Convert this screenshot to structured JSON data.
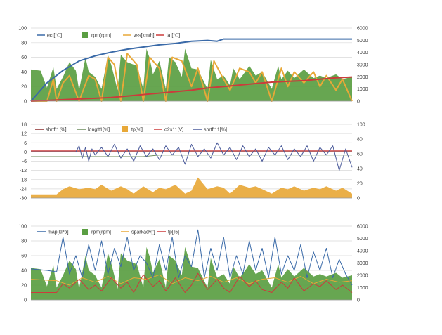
{
  "chart_data": [
    {
      "type": "line",
      "left_axis": {
        "ticks": [
          0,
          20,
          40,
          60,
          80,
          100
        ],
        "ylim": [
          0,
          100
        ]
      },
      "right_axis": {
        "ticks": [
          0,
          1000,
          2000,
          3000,
          4000,
          5000,
          6000
        ],
        "ylim": [
          0,
          6000
        ]
      },
      "grid": true,
      "legend_position": "top",
      "legend": [
        {
          "label": "ect[°C]",
          "color": "#3a6aa8",
          "marker": "line"
        },
        {
          "label": "rpm[rpm]",
          "color": "#5a9e42",
          "marker": "area"
        },
        {
          "label": "vss[km/h]",
          "color": "#e8a838",
          "marker": "line"
        },
        {
          "label": "iat[°C]",
          "color": "#cc3b3b",
          "marker": "line"
        }
      ],
      "series": [
        {
          "name": "rpm[rpm]",
          "kind": "area",
          "axis": "right",
          "color": "#5a9e42",
          "x": [
            0,
            3,
            5,
            7,
            8,
            10,
            12,
            14,
            15,
            17,
            18,
            20,
            22,
            24,
            25,
            27,
            28,
            30,
            33,
            35,
            36,
            37,
            38,
            40,
            42,
            43,
            45,
            47,
            48,
            50,
            52,
            55,
            56,
            58,
            60,
            62,
            63,
            65,
            67,
            68,
            70,
            72,
            75,
            77,
            78,
            80,
            82,
            85,
            88,
            90,
            92,
            95,
            97,
            100
          ],
          "values": [
            2600,
            2500,
            1100,
            2800,
            1000,
            2000,
            3200,
            2500,
            900,
            3600,
            2400,
            2000,
            1000,
            3800,
            3000,
            900,
            3800,
            3200,
            2900,
            1000,
            4300,
            3500,
            2200,
            3300,
            1000,
            3600,
            3200,
            2000,
            4300,
            2700,
            2600,
            1000,
            3400,
            1800,
            2100,
            1300,
            2700,
            1800,
            2500,
            2900,
            2100,
            2400,
            1000,
            2900,
            1800,
            2500,
            1900,
            2600,
            1900,
            2100,
            1900,
            2200,
            1800,
            2000
          ]
        },
        {
          "name": "ect[°C]",
          "kind": "line",
          "axis": "left",
          "color": "#3a6aa8",
          "x": [
            0,
            5,
            10,
            15,
            20,
            25,
            30,
            35,
            40,
            45,
            50,
            55,
            58,
            60,
            65,
            70,
            75,
            80,
            85,
            90,
            95,
            100
          ],
          "values": [
            0,
            25,
            42,
            55,
            62,
            67,
            71,
            74,
            77,
            79,
            82,
            83,
            82,
            85,
            85,
            85,
            85,
            85,
            85,
            85,
            85,
            85
          ]
        },
        {
          "name": "vss[km/h]",
          "kind": "line",
          "axis": "left",
          "color": "#e8a838",
          "x": [
            0,
            3,
            5,
            7,
            8,
            10,
            12,
            15,
            18,
            20,
            22,
            24,
            26,
            28,
            30,
            33,
            35,
            37,
            40,
            42,
            44,
            47,
            50,
            52,
            55,
            57,
            60,
            62,
            65,
            68,
            70,
            72,
            75,
            78,
            80,
            82,
            85,
            88,
            90,
            92,
            95,
            97,
            100
          ],
          "values": [
            0,
            0,
            0,
            30,
            0,
            25,
            35,
            0,
            35,
            30,
            0,
            60,
            50,
            0,
            65,
            50,
            0,
            60,
            45,
            0,
            60,
            55,
            20,
            45,
            0,
            55,
            30,
            15,
            45,
            40,
            25,
            40,
            0,
            45,
            20,
            40,
            25,
            40,
            20,
            35,
            15,
            30,
            0
          ]
        },
        {
          "name": "iat[°C]",
          "kind": "line",
          "axis": "left",
          "color": "#cc3b3b",
          "x": [
            0,
            10,
            20,
            25,
            30,
            35,
            40,
            45,
            50,
            55,
            60,
            65,
            70,
            75,
            80,
            85,
            90,
            95,
            100
          ],
          "values": [
            0,
            2,
            4,
            5,
            7,
            9,
            11,
            13,
            15,
            18,
            20,
            22,
            24,
            26,
            27,
            28,
            30,
            32,
            33
          ]
        }
      ]
    },
    {
      "type": "line",
      "left_axis": {
        "ticks": [
          18,
          12,
          6,
          0,
          -6,
          -12,
          -18,
          -24,
          -30
        ],
        "ylim": [
          -30,
          18
        ]
      },
      "right_axis": {
        "ticks": [
          0,
          20,
          40,
          60,
          80,
          100
        ],
        "ylim": [
          0,
          100
        ]
      },
      "grid": true,
      "legend_position": "top",
      "legend": [
        {
          "label": "shrtft1[%]",
          "color": "#8a2a2a",
          "marker": "line"
        },
        {
          "label": "longft1[%]",
          "color": "#6a8a5a",
          "marker": "line"
        },
        {
          "label": "tp[%]",
          "color": "#e8a838",
          "marker": "area"
        },
        {
          "label": "o2s11[V]",
          "color": "#cc3b3b",
          "marker": "line"
        },
        {
          "label": "shrtft11[%]",
          "color": "#4a5a9a",
          "marker": "line"
        }
      ],
      "series": [
        {
          "name": "tp[%]",
          "kind": "area",
          "axis": "right",
          "color": "#e8a838",
          "x": [
            0,
            8,
            10,
            12,
            15,
            18,
            20,
            22,
            25,
            28,
            30,
            32,
            35,
            38,
            40,
            42,
            45,
            48,
            50,
            52,
            55,
            58,
            60,
            62,
            65,
            68,
            70,
            72,
            75,
            78,
            80,
            82,
            85,
            88,
            90,
            92,
            95,
            97,
            100
          ],
          "values": [
            5,
            5,
            12,
            16,
            12,
            14,
            12,
            18,
            10,
            16,
            12,
            6,
            16,
            8,
            14,
            12,
            18,
            6,
            10,
            28,
            12,
            16,
            14,
            6,
            18,
            14,
            16,
            12,
            6,
            14,
            12,
            16,
            10,
            14,
            12,
            16,
            10,
            14,
            6
          ]
        },
        {
          "name": "longft1[%]",
          "kind": "line",
          "axis": "left",
          "color": "#6a8a5a",
          "x": [
            0,
            35,
            40,
            100
          ],
          "values": [
            -3,
            -3,
            -2,
            -2
          ]
        },
        {
          "name": "shrtft1[%]",
          "kind": "line",
          "axis": "left",
          "color": "#8a2a2a",
          "x": [
            0,
            20,
            100
          ],
          "values": [
            0.5,
            0.5,
            0.5
          ]
        },
        {
          "name": "o2s11[V]",
          "kind": "line",
          "axis": "right",
          "color": "#cc3b3b",
          "x": [
            0,
            100
          ],
          "values": [
            64,
            64
          ]
        },
        {
          "name": "shrtft11[%]",
          "kind": "line",
          "axis": "left",
          "color": "#4a5a9a",
          "x": [
            0,
            14,
            15,
            16,
            17,
            18,
            19,
            20,
            22,
            24,
            26,
            28,
            30,
            32,
            34,
            36,
            38,
            40,
            42,
            44,
            46,
            48,
            50,
            52,
            54,
            56,
            58,
            60,
            62,
            64,
            66,
            68,
            70,
            72,
            74,
            76,
            78,
            80,
            82,
            84,
            86,
            88,
            90,
            92,
            94,
            96,
            98,
            100
          ],
          "values": [
            0,
            0,
            4,
            -4,
            3,
            -6,
            2,
            -2,
            3,
            -3,
            5,
            -4,
            2,
            -6,
            4,
            -3,
            2,
            -5,
            4,
            -2,
            3,
            -8,
            5,
            -3,
            2,
            -4,
            6,
            -2,
            3,
            -5,
            4,
            -3,
            2,
            -6,
            3,
            -2,
            4,
            -5,
            2,
            -3,
            4,
            -6,
            3,
            -2,
            4,
            -12,
            2,
            -10
          ]
        }
      ]
    },
    {
      "type": "line",
      "left_axis": {
        "ticks": [
          0,
          20,
          40,
          60,
          80,
          100
        ],
        "ylim": [
          0,
          100
        ]
      },
      "right_axis": {
        "ticks": [
          0,
          1000,
          2000,
          3000,
          4000,
          5000,
          6000
        ],
        "ylim": [
          0,
          6000
        ]
      },
      "grid": true,
      "legend_position": "top",
      "legend": [
        {
          "label": "map[kPa]",
          "color": "#3a6aa8",
          "marker": "line"
        },
        {
          "label": "rpm[rpm]",
          "color": "#5a9e42",
          "marker": "area"
        },
        {
          "label": "sparkadv[']",
          "color": "#e8a838",
          "marker": "line"
        },
        {
          "label": "tp[%]",
          "color": "#cc3b3b",
          "marker": "line"
        }
      ],
      "series": [
        {
          "name": "rpm[rpm]",
          "kind": "area",
          "axis": "right",
          "color": "#5a9e42",
          "x": [
            0,
            3,
            5,
            7,
            8,
            10,
            12,
            14,
            15,
            17,
            18,
            20,
            22,
            24,
            25,
            27,
            28,
            30,
            33,
            35,
            36,
            37,
            38,
            40,
            42,
            43,
            45,
            47,
            48,
            50,
            52,
            55,
            56,
            58,
            60,
            62,
            63,
            65,
            67,
            68,
            70,
            72,
            75,
            77,
            78,
            80,
            82,
            85,
            88,
            90,
            92,
            95,
            97,
            100
          ],
          "values": [
            2600,
            2500,
            1100,
            2800,
            1000,
            2000,
            3200,
            2500,
            900,
            3600,
            2400,
            2000,
            1000,
            3800,
            3000,
            900,
            3800,
            3200,
            2900,
            1000,
            4300,
            3500,
            2200,
            3300,
            1000,
            3600,
            3200,
            2000,
            4300,
            2700,
            2600,
            1000,
            3400,
            1800,
            2100,
            1300,
            2700,
            1800,
            2500,
            2900,
            2100,
            2400,
            1000,
            2900,
            1800,
            2500,
            1900,
            2600,
            1900,
            2100,
            1900,
            2200,
            1800,
            2000
          ]
        },
        {
          "name": "map[kPa]",
          "kind": "line",
          "axis": "left",
          "color": "#3a6aa8",
          "x": [
            0,
            5,
            8,
            10,
            12,
            14,
            16,
            18,
            20,
            22,
            24,
            26,
            28,
            30,
            32,
            34,
            36,
            38,
            40,
            42,
            44,
            46,
            48,
            50,
            52,
            54,
            56,
            58,
            60,
            62,
            64,
            66,
            68,
            70,
            72,
            74,
            76,
            78,
            80,
            82,
            84,
            86,
            88,
            90,
            92,
            94,
            96,
            98,
            100
          ],
          "values": [
            42,
            40,
            38,
            85,
            35,
            60,
            30,
            75,
            40,
            80,
            35,
            70,
            45,
            85,
            40,
            60,
            50,
            30,
            75,
            40,
            85,
            30,
            60,
            45,
            95,
            30,
            70,
            40,
            85,
            30,
            60,
            35,
            80,
            40,
            70,
            30,
            85,
            35,
            60,
            40,
            75,
            30,
            65,
            40,
            70,
            30,
            55,
            35,
            20
          ]
        },
        {
          "name": "sparkadv[']",
          "kind": "line",
          "axis": "left",
          "color": "#e8a838",
          "x": [
            0,
            8,
            12,
            16,
            20,
            24,
            28,
            32,
            36,
            40,
            44,
            48,
            52,
            56,
            60,
            64,
            68,
            72,
            76,
            80,
            84,
            88,
            92,
            96,
            100
          ],
          "values": [
            28,
            26,
            20,
            30,
            24,
            32,
            22,
            30,
            28,
            34,
            22,
            30,
            26,
            32,
            24,
            30,
            22,
            28,
            30,
            24,
            32,
            22,
            28,
            24,
            26
          ]
        },
        {
          "name": "tp[%]",
          "kind": "line",
          "axis": "left",
          "color": "#cc3b3b",
          "x": [
            0,
            8,
            10,
            12,
            15,
            18,
            20,
            22,
            25,
            28,
            30,
            32,
            35,
            38,
            40,
            42,
            45,
            48,
            50,
            52,
            55,
            58,
            60,
            62,
            65,
            68,
            70,
            72,
            75,
            78,
            80,
            82,
            85,
            88,
            90,
            92,
            95,
            97,
            100
          ],
          "values": [
            10,
            10,
            22,
            16,
            28,
            14,
            20,
            12,
            30,
            16,
            24,
            10,
            34,
            18,
            26,
            12,
            30,
            10,
            20,
            36,
            14,
            28,
            16,
            10,
            32,
            18,
            26,
            14,
            10,
            24,
            16,
            30,
            12,
            22,
            18,
            26,
            14,
            20,
            10
          ]
        }
      ]
    }
  ]
}
